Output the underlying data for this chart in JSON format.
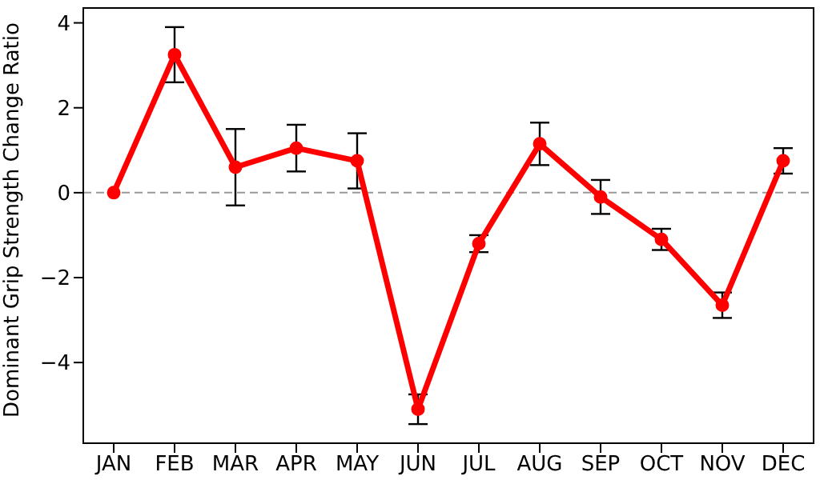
{
  "chart_data": {
    "type": "line",
    "ylabel": "Dominant Grip Strength Change Ratio",
    "categories": [
      "JAN",
      "FEB",
      "MAR",
      "APR",
      "MAY",
      "JUN",
      "JUL",
      "AUG",
      "SEP",
      "OCT",
      "NOV",
      "DEC"
    ],
    "series": [
      {
        "color": "#ff0000",
        "values": [
          0,
          3.25,
          0.6,
          1.05,
          0.75,
          -5.1,
          -1.2,
          1.15,
          -0.1,
          -1.1,
          -2.65,
          0.75
        ],
        "errors": [
          null,
          0.65,
          0.9,
          0.55,
          0.65,
          0.35,
          0.2,
          0.5,
          0.4,
          0.25,
          0.3,
          0.3
        ]
      }
    ],
    "ylim": [
      -5.9,
      4.35
    ],
    "yticks": [
      -4,
      -2,
      0,
      2,
      4
    ],
    "ref_lines": [
      {
        "axis": "y",
        "value": 0,
        "color": "#999999",
        "line_style": "dashed"
      }
    ],
    "grid": false,
    "legend": false,
    "marker": "circle",
    "line_style": "solid"
  }
}
